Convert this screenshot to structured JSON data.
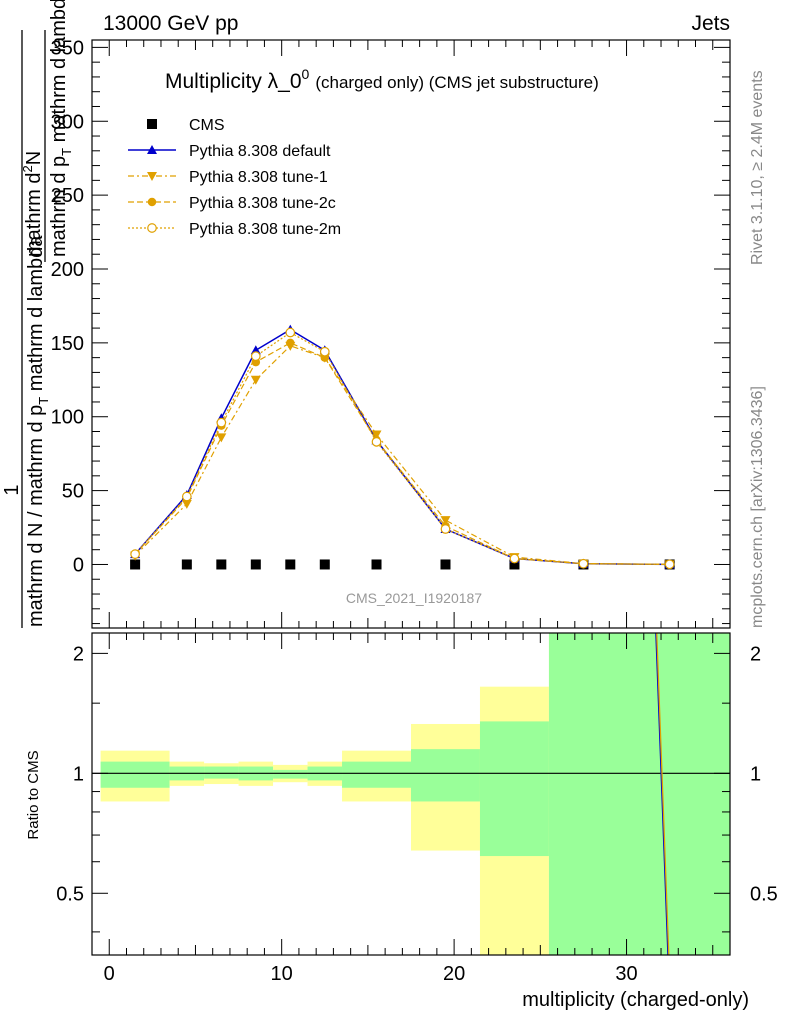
{
  "header": {
    "left": "13000 GeV pp",
    "right": "Jets"
  },
  "side": {
    "rivet": "Rivet 3.1.10, ≥ 2.4M events",
    "mcplots": "mcplots.cern.ch [arXiv:1306.3436]"
  },
  "chart_data": [
    {
      "type": "line",
      "title": "Multiplicity λ_0",
      "title_sup": "0",
      "subtitle": "(charged only) (CMS jet substructure)",
      "ylabel_parts": {
        "numer_top": "mathrm d",
        "numer_sup": "2",
        "numer_n": "N",
        "denom_top": "mathrm d p",
        "denom_top_sub": "T",
        "denom_top_tail": " mathrm d lambda",
        "one": "1",
        "denom_main": "mathrm d N / mathrm d p",
        "denom_main_sub": "T",
        "denom_main_tail": " mathrm d lambda"
      },
      "watermark": "CMS_2021_I1920187",
      "xlim": [
        -1,
        36
      ],
      "ylim": [
        -43,
        355
      ],
      "yticks": [
        0,
        50,
        100,
        150,
        200,
        250,
        300,
        350
      ],
      "legend_position": "top-left",
      "series": [
        {
          "name": "CMS",
          "color": "#000000",
          "marker": "square",
          "line": "none",
          "x": [
            1.5,
            4.5,
            6.5,
            8.5,
            10.5,
            12.5,
            15.5,
            19.5,
            23.5,
            27.5,
            32.5
          ],
          "y": [
            0,
            0,
            0,
            0,
            0,
            0,
            0,
            0,
            0,
            0,
            0
          ]
        },
        {
          "name": "Pythia 8.308 default",
          "color": "#0000cc",
          "marker": "triangle-up",
          "line": "solid",
          "x": [
            1.5,
            4.5,
            6.5,
            8.5,
            10.5,
            12.5,
            15.5,
            19.5,
            23.5,
            27.5,
            32.5
          ],
          "y": [
            7,
            47,
            99,
            145,
            159,
            145,
            84,
            24,
            4,
            0.5,
            0.1
          ]
        },
        {
          "name": "Pythia 8.308 tune-1",
          "color": "#e0a000",
          "marker": "triangle-down",
          "line": "dashdot",
          "x": [
            1.5,
            4.5,
            6.5,
            8.5,
            10.5,
            12.5,
            15.5,
            19.5,
            23.5,
            27.5,
            32.5
          ],
          "y": [
            6,
            41,
            86,
            125,
            148,
            140,
            88,
            30,
            5,
            0.6,
            0.1
          ]
        },
        {
          "name": "Pythia 8.308 tune-2c",
          "color": "#e0a000",
          "marker": "circle",
          "line": "dashed",
          "x": [
            1.5,
            4.5,
            6.5,
            8.5,
            10.5,
            12.5,
            15.5,
            19.5,
            23.5,
            27.5,
            32.5
          ],
          "y": [
            7,
            45,
            94,
            137,
            150,
            140,
            84,
            26,
            4,
            0.5,
            0.1
          ]
        },
        {
          "name": "Pythia 8.308 tune-2m",
          "color": "#e0a000",
          "marker": "open-circle",
          "line": "dotted",
          "x": [
            1.5,
            4.5,
            6.5,
            8.5,
            10.5,
            12.5,
            15.5,
            19.5,
            23.5,
            27.5,
            32.5
          ],
          "y": [
            7,
            46,
            96,
            141,
            157,
            144,
            83,
            24,
            4,
            0.5,
            0.1
          ]
        }
      ]
    },
    {
      "type": "area",
      "ylabel": "Ratio to CMS",
      "xlabel": "multiplicity (charged-only)",
      "xlim": [
        -1,
        36
      ],
      "ylim": [
        0.35,
        2.25
      ],
      "xticks": [
        0,
        10,
        20,
        30
      ],
      "yticks": [
        0.5,
        1,
        2
      ],
      "reference": 1,
      "bands": [
        {
          "x0": -0.5,
          "x1": 3.5,
          "green": [
            0.92,
            1.07
          ],
          "yellow": [
            0.85,
            1.14
          ]
        },
        {
          "x0": 3.5,
          "x1": 5.5,
          "green": [
            0.96,
            1.04
          ],
          "yellow": [
            0.93,
            1.07
          ]
        },
        {
          "x0": 5.5,
          "x1": 7.5,
          "green": [
            0.97,
            1.04
          ],
          "yellow": [
            0.94,
            1.06
          ]
        },
        {
          "x0": 7.5,
          "x1": 9.5,
          "green": [
            0.96,
            1.04
          ],
          "yellow": [
            0.93,
            1.07
          ]
        },
        {
          "x0": 9.5,
          "x1": 11.5,
          "green": [
            0.97,
            1.02
          ],
          "yellow": [
            0.95,
            1.05
          ]
        },
        {
          "x0": 11.5,
          "x1": 13.5,
          "green": [
            0.96,
            1.04
          ],
          "yellow": [
            0.93,
            1.07
          ]
        },
        {
          "x0": 13.5,
          "x1": 17.5,
          "green": [
            0.92,
            1.07
          ],
          "yellow": [
            0.85,
            1.14
          ]
        },
        {
          "x0": 17.5,
          "x1": 21.5,
          "green": [
            0.85,
            1.15
          ],
          "yellow": [
            0.64,
            1.33
          ]
        },
        {
          "x0": 21.5,
          "x1": 25.5,
          "green": [
            0.62,
            1.35
          ],
          "yellow": [
            0.35,
            1.65
          ]
        },
        {
          "x0": 25.5,
          "x1": 36,
          "green": [
            0.35,
            2.25
          ],
          "yellow": [
            0.35,
            2.25
          ]
        }
      ],
      "ratio_lines": [
        {
          "color": "#0000cc",
          "x": [
            31.7,
            32.4
          ],
          "y": [
            2.3,
            0.3
          ]
        },
        {
          "color": "#e0a000",
          "x": [
            31.75,
            32.45
          ],
          "y": [
            2.3,
            0.3
          ]
        }
      ]
    }
  ]
}
